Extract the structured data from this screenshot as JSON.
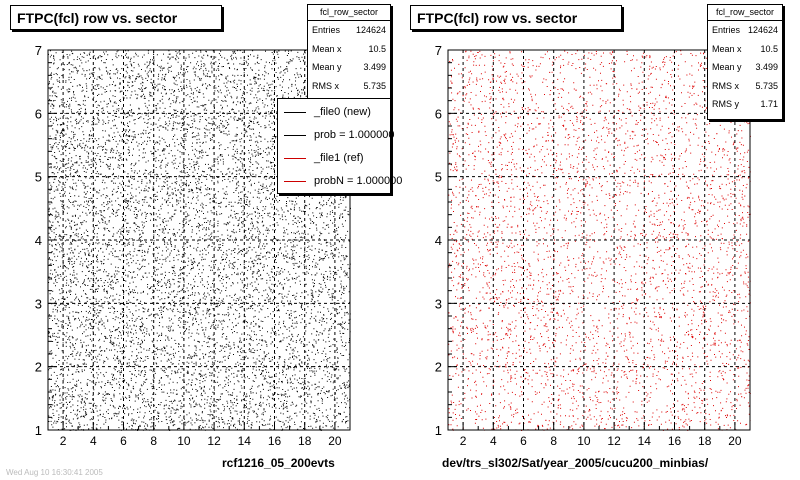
{
  "chart_data": [
    {
      "type": "scatter",
      "title": "FTPC(fcl) row vs. sector",
      "x_ticks": [
        2,
        4,
        6,
        8,
        10,
        12,
        14,
        16,
        18,
        20
      ],
      "y_ticks": [
        1,
        2,
        3,
        4,
        5,
        6,
        7
      ],
      "xlim": [
        1,
        21
      ],
      "ylim": [
        1,
        7
      ],
      "grid": true,
      "color": "#000000",
      "stats": {
        "title": "fcl_row_sector",
        "rows": [
          {
            "label": "Entries",
            "value": "124624"
          },
          {
            "label": "Mean x",
            "value": "10.5"
          },
          {
            "label": "Mean y",
            "value": "3.499"
          },
          {
            "label": "RMS x",
            "value": "5.735"
          }
        ]
      },
      "legend": {
        "placement": "top-right",
        "entries": [
          {
            "label": "_file0 (new)",
            "color": "#000000"
          },
          {
            "label": "prob = 1.000000",
            "color": "#000000"
          },
          {
            "label": "_file1 (ref)",
            "color": "#cc0000"
          },
          {
            "label": "probN = 1.000000",
            "color": "#cc0000"
          }
        ]
      },
      "footer": "rcf1216_05_200evts",
      "faint_text": "Wed Aug 10 16:30:41 2005"
    },
    {
      "type": "scatter",
      "title": "FTPC(fcl) row vs. sector",
      "x_ticks": [
        2,
        4,
        6,
        8,
        10,
        12,
        14,
        16,
        18,
        20
      ],
      "y_ticks": [
        1,
        2,
        3,
        4,
        5,
        6,
        7
      ],
      "xlim": [
        1,
        21
      ],
      "ylim": [
        1,
        7
      ],
      "grid": true,
      "color": "#dd0000",
      "stats": {
        "title": "fcl_row_sector",
        "rows": [
          {
            "label": "Entries",
            "value": "124624"
          },
          {
            "label": "Mean x",
            "value": "10.5"
          },
          {
            "label": "Mean y",
            "value": "3.499"
          },
          {
            "label": "RMS x",
            "value": "5.735"
          },
          {
            "label": "RMS y",
            "value": "1.71"
          }
        ]
      },
      "footer": "dev/trs_sl302/Sat/year_2005/cucu200_minbias/"
    }
  ]
}
